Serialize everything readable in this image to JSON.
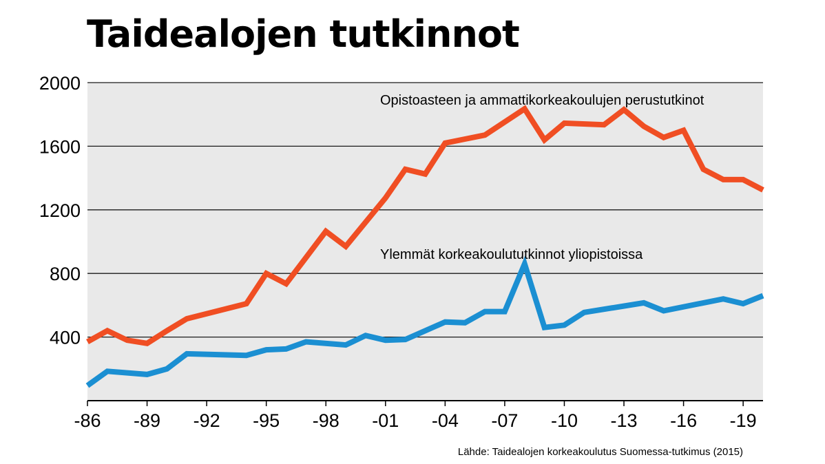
{
  "chart_data": {
    "type": "line",
    "title": "Taidealojen tutkinnot",
    "xlabel": "",
    "ylabel": "",
    "ylim": [
      0,
      2000
    ],
    "y_ticks": [
      "2000",
      "1600",
      "1200",
      "800",
      "400"
    ],
    "x_ticks": [
      "-86",
      "-89",
      "-92",
      "-95",
      "-98",
      "-01",
      "-04",
      "-07",
      "-10",
      "-13",
      "-16",
      "-19"
    ],
    "x": [
      1986,
      1987,
      1988,
      1989,
      1990,
      1991,
      1994,
      1995,
      1996,
      1997,
      1998,
      1999,
      2000,
      2001,
      2002,
      2003,
      2004,
      2005,
      2006,
      2007,
      2008,
      2009,
      2010,
      2011,
      2012,
      2013,
      2014,
      2015,
      2016,
      2017,
      2018,
      2019,
      2020
    ],
    "grid": true,
    "background": "#e9e9e9",
    "series": [
      {
        "name": "Opistoasteen ja ammattikorkeakoulujen perustutkinot",
        "color": "#f04e23",
        "points": [
          [
            1986,
            370
          ],
          [
            1987,
            440
          ],
          [
            1988,
            380
          ],
          [
            1989,
            360
          ],
          [
            1990,
            440
          ],
          [
            1991,
            515
          ],
          [
            1994,
            610
          ],
          [
            1995,
            800
          ],
          [
            1996,
            735
          ],
          [
            1997,
            900
          ],
          [
            1998,
            1065
          ],
          [
            1999,
            970
          ],
          [
            2001,
            1275
          ],
          [
            2002,
            1455
          ],
          [
            2003,
            1425
          ],
          [
            2004,
            1620
          ],
          [
            2005,
            1645
          ],
          [
            2006,
            1670
          ],
          [
            2008,
            1835
          ],
          [
            2009,
            1640
          ],
          [
            2010,
            1745
          ],
          [
            2012,
            1735
          ],
          [
            2013,
            1830
          ],
          [
            2014,
            1725
          ],
          [
            2015,
            1655
          ],
          [
            2016,
            1700
          ],
          [
            2017,
            1455
          ],
          [
            2018,
            1390
          ],
          [
            2019,
            1390
          ],
          [
            2020,
            1325
          ]
        ]
      },
      {
        "name": "Ylemmät korkeakoulututkinnot yliopistoissa",
        "color": "#1b8fd2",
        "points": [
          [
            1986,
            95
          ],
          [
            1987,
            185
          ],
          [
            1989,
            165
          ],
          [
            1990,
            200
          ],
          [
            1991,
            295
          ],
          [
            1994,
            285
          ],
          [
            1995,
            320
          ],
          [
            1996,
            325
          ],
          [
            1997,
            370
          ],
          [
            1999,
            350
          ],
          [
            2000,
            410
          ],
          [
            2001,
            380
          ],
          [
            2002,
            385
          ],
          [
            2004,
            495
          ],
          [
            2005,
            490
          ],
          [
            2006,
            560
          ],
          [
            2007,
            560
          ],
          [
            2008,
            860
          ],
          [
            2009,
            460
          ],
          [
            2010,
            475
          ],
          [
            2011,
            555
          ],
          [
            2014,
            615
          ],
          [
            2015,
            565
          ],
          [
            2018,
            640
          ],
          [
            2019,
            610
          ],
          [
            2020,
            660
          ]
        ]
      }
    ],
    "annotations": [
      {
        "text": "Opistoasteen ja ammattikorkeakoulujen perustutkinot",
        "series": 0
      },
      {
        "text": "Ylemmät korkeakoulututkinnot yliopistoissa",
        "series": 1
      }
    ]
  },
  "source": "Lähde: Taidealojen korkeakoulutus Suomessa-tutkimus (2015)"
}
